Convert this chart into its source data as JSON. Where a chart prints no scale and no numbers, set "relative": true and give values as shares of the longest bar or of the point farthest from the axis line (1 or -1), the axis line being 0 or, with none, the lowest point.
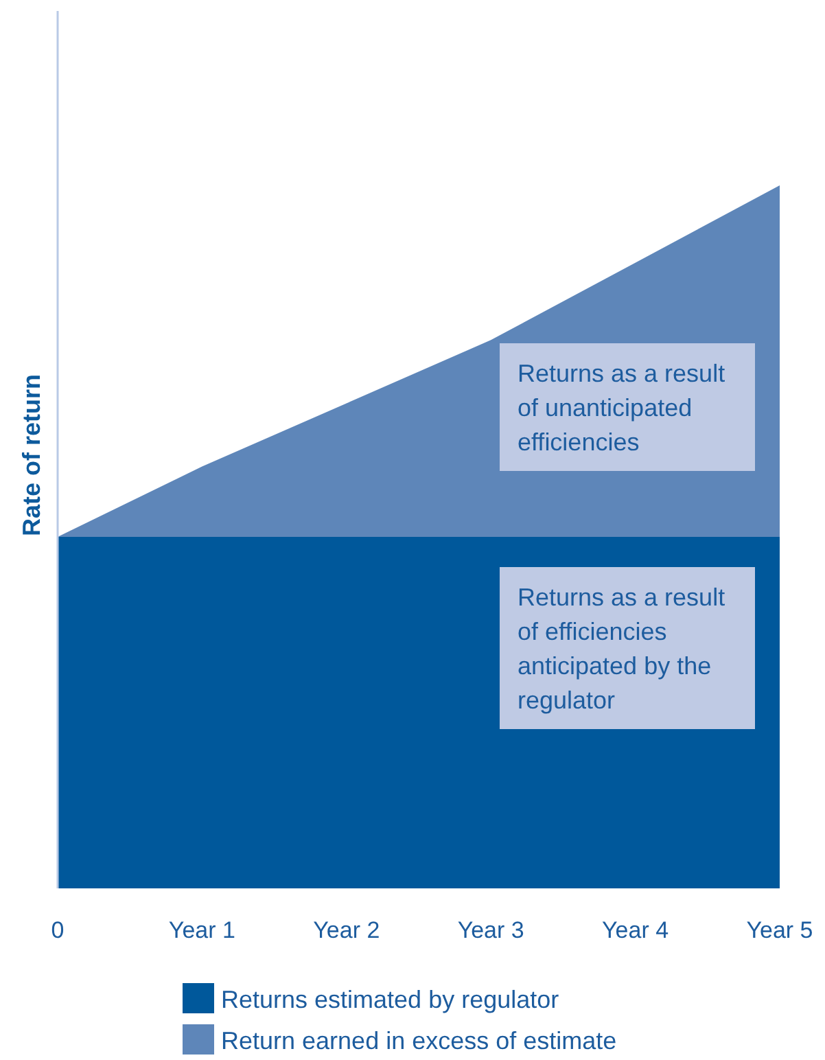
{
  "chart_data": {
    "type": "area",
    "stacked": true,
    "relative": true,
    "ylabel": "Rate of return",
    "categories": [
      "0",
      "Year 1",
      "Year 2",
      "Year 3",
      "Year 4",
      "Year 5"
    ],
    "series": [
      {
        "name": "Returns estimated by regulator",
        "color": "#00589b",
        "values": [
          0.5,
          0.5,
          0.5,
          0.5,
          0.5,
          0.5
        ]
      },
      {
        "name": "Return earned in excess of estimate",
        "color": "#5e86b9",
        "values": [
          0,
          0.1,
          0.19,
          0.28,
          0.39,
          0.5
        ]
      }
    ],
    "annotations": [
      "Returns as a result of unanticipated efficiencies",
      "Returns as a result of efficiencies anticipated by the regulator"
    ],
    "legend": "bottom"
  }
}
